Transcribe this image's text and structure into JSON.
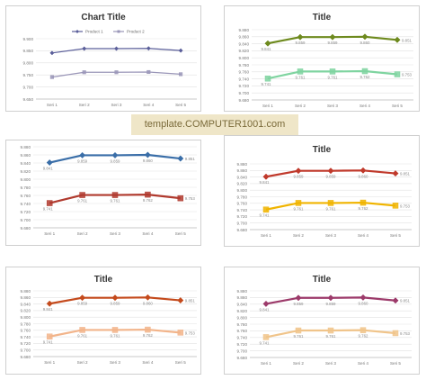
{
  "watermark": "template.COMPUTER1001.com",
  "categories": [
    "Seri 1",
    "Seri 2",
    "Seri 3",
    "Seri 4",
    "Seri 5"
  ],
  "chart_data": [
    {
      "type": "line",
      "title": "Chart Title",
      "categories": [
        "Seri 1",
        "Seri 2",
        "Seri 3",
        "Seri 4",
        "Seri 5"
      ],
      "ylim": [
        9.65,
        9.9
      ],
      "yticks": [
        "9.900",
        "9.850",
        "9.800",
        "9.750",
        "9.700",
        "9.650"
      ],
      "legend": "top",
      "grid": true,
      "series": [
        {
          "name": "Product 1",
          "values": [
            9.841,
            9.859,
            9.859,
            9.86,
            9.851
          ],
          "color": "#5b5f9a",
          "marker": "diamond",
          "labels": []
        },
        {
          "name": "Product 2",
          "values": [
            9.741,
            9.761,
            9.761,
            9.762,
            9.753
          ],
          "color": "#9a96b8",
          "marker": "square",
          "labels": []
        }
      ]
    },
    {
      "type": "line",
      "title": "Title",
      "categories": [
        "Seri 1",
        "Seri 2",
        "Seri 3",
        "Seri 4",
        "Seri 5"
      ],
      "ylim": [
        9.68,
        9.88
      ],
      "yticks": [
        "9.880",
        "9.860",
        "9.840",
        "9.820",
        "9.800",
        "9.780",
        "9.760",
        "9.740",
        "9.720",
        "9.700",
        "9.680"
      ],
      "legend": "none",
      "grid": true,
      "series": [
        {
          "values": [
            9.841,
            9.859,
            9.859,
            9.86,
            9.851
          ],
          "color": "#6e8a1e",
          "marker": "diamond",
          "labels": [
            "9.841",
            "9.859",
            "9.859",
            "9.860",
            "9.851"
          ]
        },
        {
          "values": [
            9.741,
            9.761,
            9.761,
            9.762,
            9.753
          ],
          "color": "#7fd4a0",
          "marker": "square",
          "labels": [
            "9.741",
            "9.761",
            "9.761",
            "9.762",
            "9.753"
          ]
        }
      ]
    },
    {
      "type": "line",
      "title": "",
      "categories": [
        "Seri 1",
        "Seri 2",
        "Seri 3",
        "Seri 4",
        "Seri 5"
      ],
      "ylim": [
        9.68,
        9.88
      ],
      "yticks": [
        "9.880",
        "9.860",
        "9.840",
        "9.820",
        "9.800",
        "9.780",
        "9.760",
        "9.740",
        "9.720",
        "9.700",
        "9.680"
      ],
      "legend": "none",
      "grid": true,
      "series": [
        {
          "values": [
            9.841,
            9.859,
            9.859,
            9.86,
            9.851
          ],
          "color": "#3a6ea8",
          "marker": "diamond",
          "labels": [
            "9.841",
            "9.859",
            "9.859",
            "9.860",
            "9.851"
          ]
        },
        {
          "values": [
            9.741,
            9.761,
            9.761,
            9.762,
            9.753
          ],
          "color": "#b03a2e",
          "marker": "square",
          "labels": [
            "9.741",
            "9.761",
            "9.761",
            "9.762",
            "9.753"
          ]
        }
      ]
    },
    {
      "type": "line",
      "title": "Title",
      "categories": [
        "Seri 1",
        "Seri 2",
        "Seri 3",
        "Seri 4",
        "Seri 5"
      ],
      "ylim": [
        9.68,
        9.88
      ],
      "yticks": [
        "9.880",
        "9.860",
        "9.840",
        "9.820",
        "9.800",
        "9.780",
        "9.760",
        "9.740",
        "9.720",
        "9.700",
        "9.680"
      ],
      "legend": "none",
      "grid": true,
      "series": [
        {
          "values": [
            9.841,
            9.859,
            9.859,
            9.86,
            9.851
          ],
          "color": "#c0392b",
          "marker": "diamond",
          "labels": [
            "9.841",
            "9.859",
            "9.859",
            "9.860",
            "9.851"
          ]
        },
        {
          "values": [
            9.741,
            9.761,
            9.761,
            9.762,
            9.753
          ],
          "color": "#f0b400",
          "marker": "square",
          "labels": [
            "9.741",
            "9.761",
            "9.761",
            "9.762",
            "9.753"
          ]
        }
      ]
    },
    {
      "type": "line",
      "title": "Title",
      "categories": [
        "Seri 1",
        "Seri 2",
        "Seri 3",
        "Seri 4",
        "Seri 5"
      ],
      "ylim": [
        9.68,
        9.88
      ],
      "yticks": [
        "9.880",
        "9.860",
        "9.840",
        "9.820",
        "9.800",
        "9.780",
        "9.760",
        "9.740",
        "9.720",
        "9.700",
        "9.680"
      ],
      "legend": "none",
      "grid": true,
      "series": [
        {
          "values": [
            9.841,
            9.859,
            9.859,
            9.86,
            9.851
          ],
          "color": "#c44a1c",
          "marker": "diamond",
          "labels": [
            "9.841",
            "9.859",
            "9.859",
            "9.860",
            "9.851"
          ]
        },
        {
          "values": [
            9.741,
            9.761,
            9.761,
            9.762,
            9.753
          ],
          "color": "#f2b48a",
          "marker": "square",
          "labels": [
            "9.741",
            "9.761",
            "9.761",
            "9.762",
            "9.753"
          ]
        }
      ]
    },
    {
      "type": "line",
      "title": "Title",
      "categories": [
        "Seri 1",
        "Seri 2",
        "Seri 3",
        "Seri 4",
        "Seri 5"
      ],
      "ylim": [
        9.68,
        9.88
      ],
      "yticks": [
        "9.880",
        "9.860",
        "9.840",
        "9.820",
        "9.800",
        "9.780",
        "9.760",
        "9.740",
        "9.720",
        "9.700",
        "9.680"
      ],
      "legend": "none",
      "grid": true,
      "series": [
        {
          "values": [
            9.841,
            9.859,
            9.859,
            9.86,
            9.851
          ],
          "color": "#9c3a6a",
          "marker": "diamond",
          "labels": [
            "9.841",
            "9.859",
            "9.859",
            "9.860",
            "9.851"
          ]
        },
        {
          "values": [
            9.741,
            9.761,
            9.761,
            9.762,
            9.753
          ],
          "color": "#f0c48a",
          "marker": "square",
          "labels": [
            "9.741",
            "9.761",
            "9.761",
            "9.762",
            "9.753"
          ]
        }
      ]
    }
  ]
}
